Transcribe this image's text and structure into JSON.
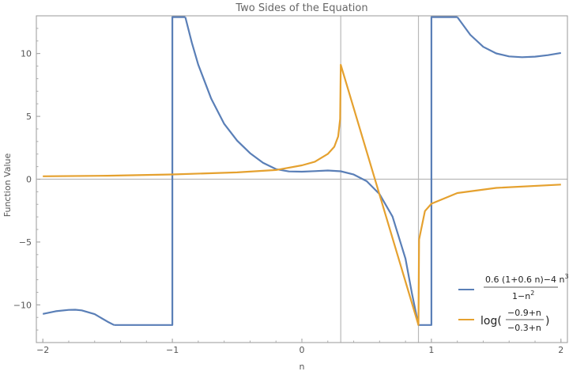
{
  "chart_data": {
    "type": "line",
    "title": "Two Sides of the Equation",
    "xlabel": "n",
    "ylabel": "Function Value",
    "xlim": [
      -2.05,
      2.05
    ],
    "ylim": [
      -13,
      13
    ],
    "xticks": [
      -2,
      -1,
      0,
      1,
      2
    ],
    "xtick_labels": [
      "−2",
      "−1",
      "0",
      "1",
      "2"
    ],
    "yticks": [
      -10,
      -5,
      0,
      5,
      10
    ],
    "ytick_labels": [
      "−10",
      "−5",
      "0",
      "5",
      "10"
    ],
    "grid_vertical_lines": [
      0.3,
      0.9
    ],
    "grid_horizontal_lines": [
      0
    ],
    "legend_position": "bottom-right",
    "series": [
      {
        "expression": "(0.6 (1+0.6 n) - 4 n^3) / (1 - n^2)",
        "color": "#5A7FB7",
        "clip": [
          -11.6,
          12.9
        ],
        "points": [
          [
            -2.0,
            -10.72
          ],
          [
            -1.9,
            -10.51
          ],
          [
            -1.8,
            -10.4
          ],
          [
            -1.75,
            -10.39
          ],
          [
            -1.7,
            -10.44
          ],
          [
            -1.6,
            -10.74
          ],
          [
            -1.5,
            -11.34
          ],
          [
            -1.45,
            -11.79
          ],
          [
            -1.0,
            -11.6
          ],
          [
            -1.0,
            12.9
          ],
          [
            -0.9,
            13.06
          ],
          [
            -0.85,
            10.87
          ],
          [
            -0.8,
            9.1
          ],
          [
            -0.7,
            6.4
          ],
          [
            -0.6,
            4.4
          ],
          [
            -0.5,
            3.07
          ],
          [
            -0.4,
            2.07
          ],
          [
            -0.3,
            1.3
          ],
          [
            -0.2,
            0.8
          ],
          [
            -0.1,
            0.62
          ],
          [
            0.0,
            0.6
          ],
          [
            0.1,
            0.64
          ],
          [
            0.2,
            0.69
          ],
          [
            0.3,
            0.63
          ],
          [
            0.4,
            0.37
          ],
          [
            0.5,
            -0.16
          ],
          [
            0.6,
            -1.19
          ],
          [
            0.7,
            -2.98
          ],
          [
            0.8,
            -6.33
          ],
          [
            0.85,
            -9.1
          ],
          [
            0.9,
            -11.6
          ],
          [
            1.0,
            -11.6
          ],
          [
            1.0,
            12.9
          ],
          [
            1.2,
            13.0
          ],
          [
            1.3,
            11.49
          ],
          [
            1.4,
            10.53
          ],
          [
            1.5,
            10.01
          ],
          [
            1.6,
            9.77
          ],
          [
            1.7,
            9.71
          ],
          [
            1.8,
            9.75
          ],
          [
            1.9,
            9.87
          ],
          [
            2.0,
            10.05
          ]
        ]
      },
      {
        "expression": "log((-0.9 + n) / (-0.3 + n))",
        "color": "#E5A12F",
        "clip": [
          -11.6,
          9.1
        ],
        "points": [
          [
            -2.0,
            0.23
          ],
          [
            -1.5,
            0.28
          ],
          [
            -1.0,
            0.38
          ],
          [
            -0.5,
            0.54
          ],
          [
            -0.2,
            0.73
          ],
          [
            0.0,
            1.1
          ],
          [
            0.1,
            1.39
          ],
          [
            0.2,
            2.01
          ],
          [
            0.25,
            2.58
          ],
          [
            0.28,
            3.4
          ],
          [
            0.295,
            4.79
          ],
          [
            0.3,
            9.1
          ],
          [
            0.9,
            -11.6
          ],
          [
            0.905,
            -4.79
          ],
          [
            0.95,
            -2.54
          ],
          [
            1.0,
            -1.95
          ],
          [
            1.2,
            -1.1
          ],
          [
            1.5,
            -0.69
          ],
          [
            2.0,
            -0.43
          ]
        ]
      }
    ]
  },
  "legend": {
    "items": [
      {
        "color": "#5A7FB7",
        "numerator": "0.6 (1+0.6 n)−4 n",
        "numerator_sup": "3",
        "denominator": "1−n",
        "denominator_sup": "2"
      },
      {
        "color": "#E5A12F",
        "prefix": "log(",
        "numerator": "−0.9+n",
        "denominator": "−0.3+n",
        "suffix": ")"
      }
    ]
  }
}
